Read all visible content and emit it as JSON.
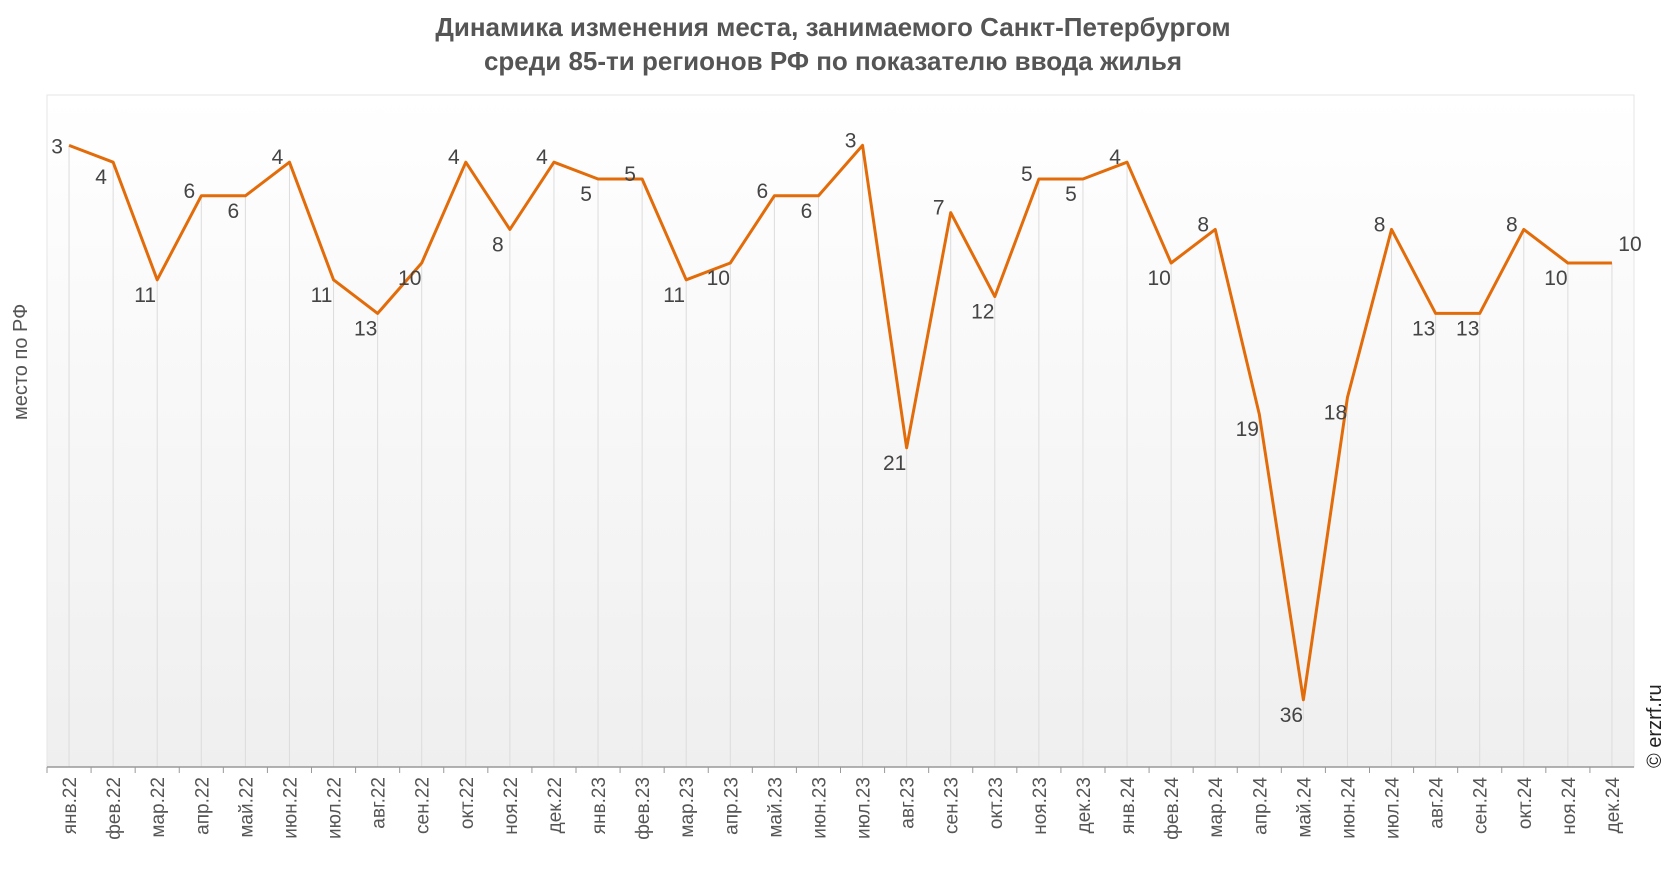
{
  "chart_data": {
    "type": "line",
    "title": "Динамика изменения места, занимаемого Санкт-Петербургом",
    "subtitle": "среди 85-ти регионов РФ по показателю ввода жилья",
    "xlabel": "",
    "ylabel": "место по РФ",
    "ylim": [
      40,
      0
    ],
    "y_inverted": true,
    "grid": "vertical",
    "watermark": "© erzrf.ru",
    "line_color": "#e36c0a",
    "categories": [
      "янв.22",
      "фев.22",
      "мар.22",
      "апр.22",
      "май.22",
      "июн.22",
      "июл.22",
      "авг.22",
      "сен.22",
      "окт.22",
      "ноя.22",
      "дек.22",
      "янв.23",
      "фев.23",
      "мар.23",
      "апр.23",
      "май.23",
      "июн.23",
      "июл.23",
      "авг.23",
      "сен.23",
      "окт.23",
      "ноя.23",
      "дек.23",
      "янв.24",
      "фев.24",
      "мар.24",
      "апр.24",
      "май.24",
      "июн.24",
      "июл.24",
      "авг.24",
      "сен.24",
      "окт.24",
      "ноя.24",
      "дек.24"
    ],
    "series": [
      {
        "name": "место",
        "values": [
          3,
          4,
          11,
          6,
          6,
          4,
          11,
          13,
          10,
          4,
          8,
          4,
          5,
          5,
          11,
          10,
          6,
          6,
          3,
          21,
          7,
          12,
          5,
          5,
          4,
          10,
          8,
          19,
          36,
          18,
          8,
          13,
          13,
          8,
          10,
          10
        ]
      }
    ]
  }
}
